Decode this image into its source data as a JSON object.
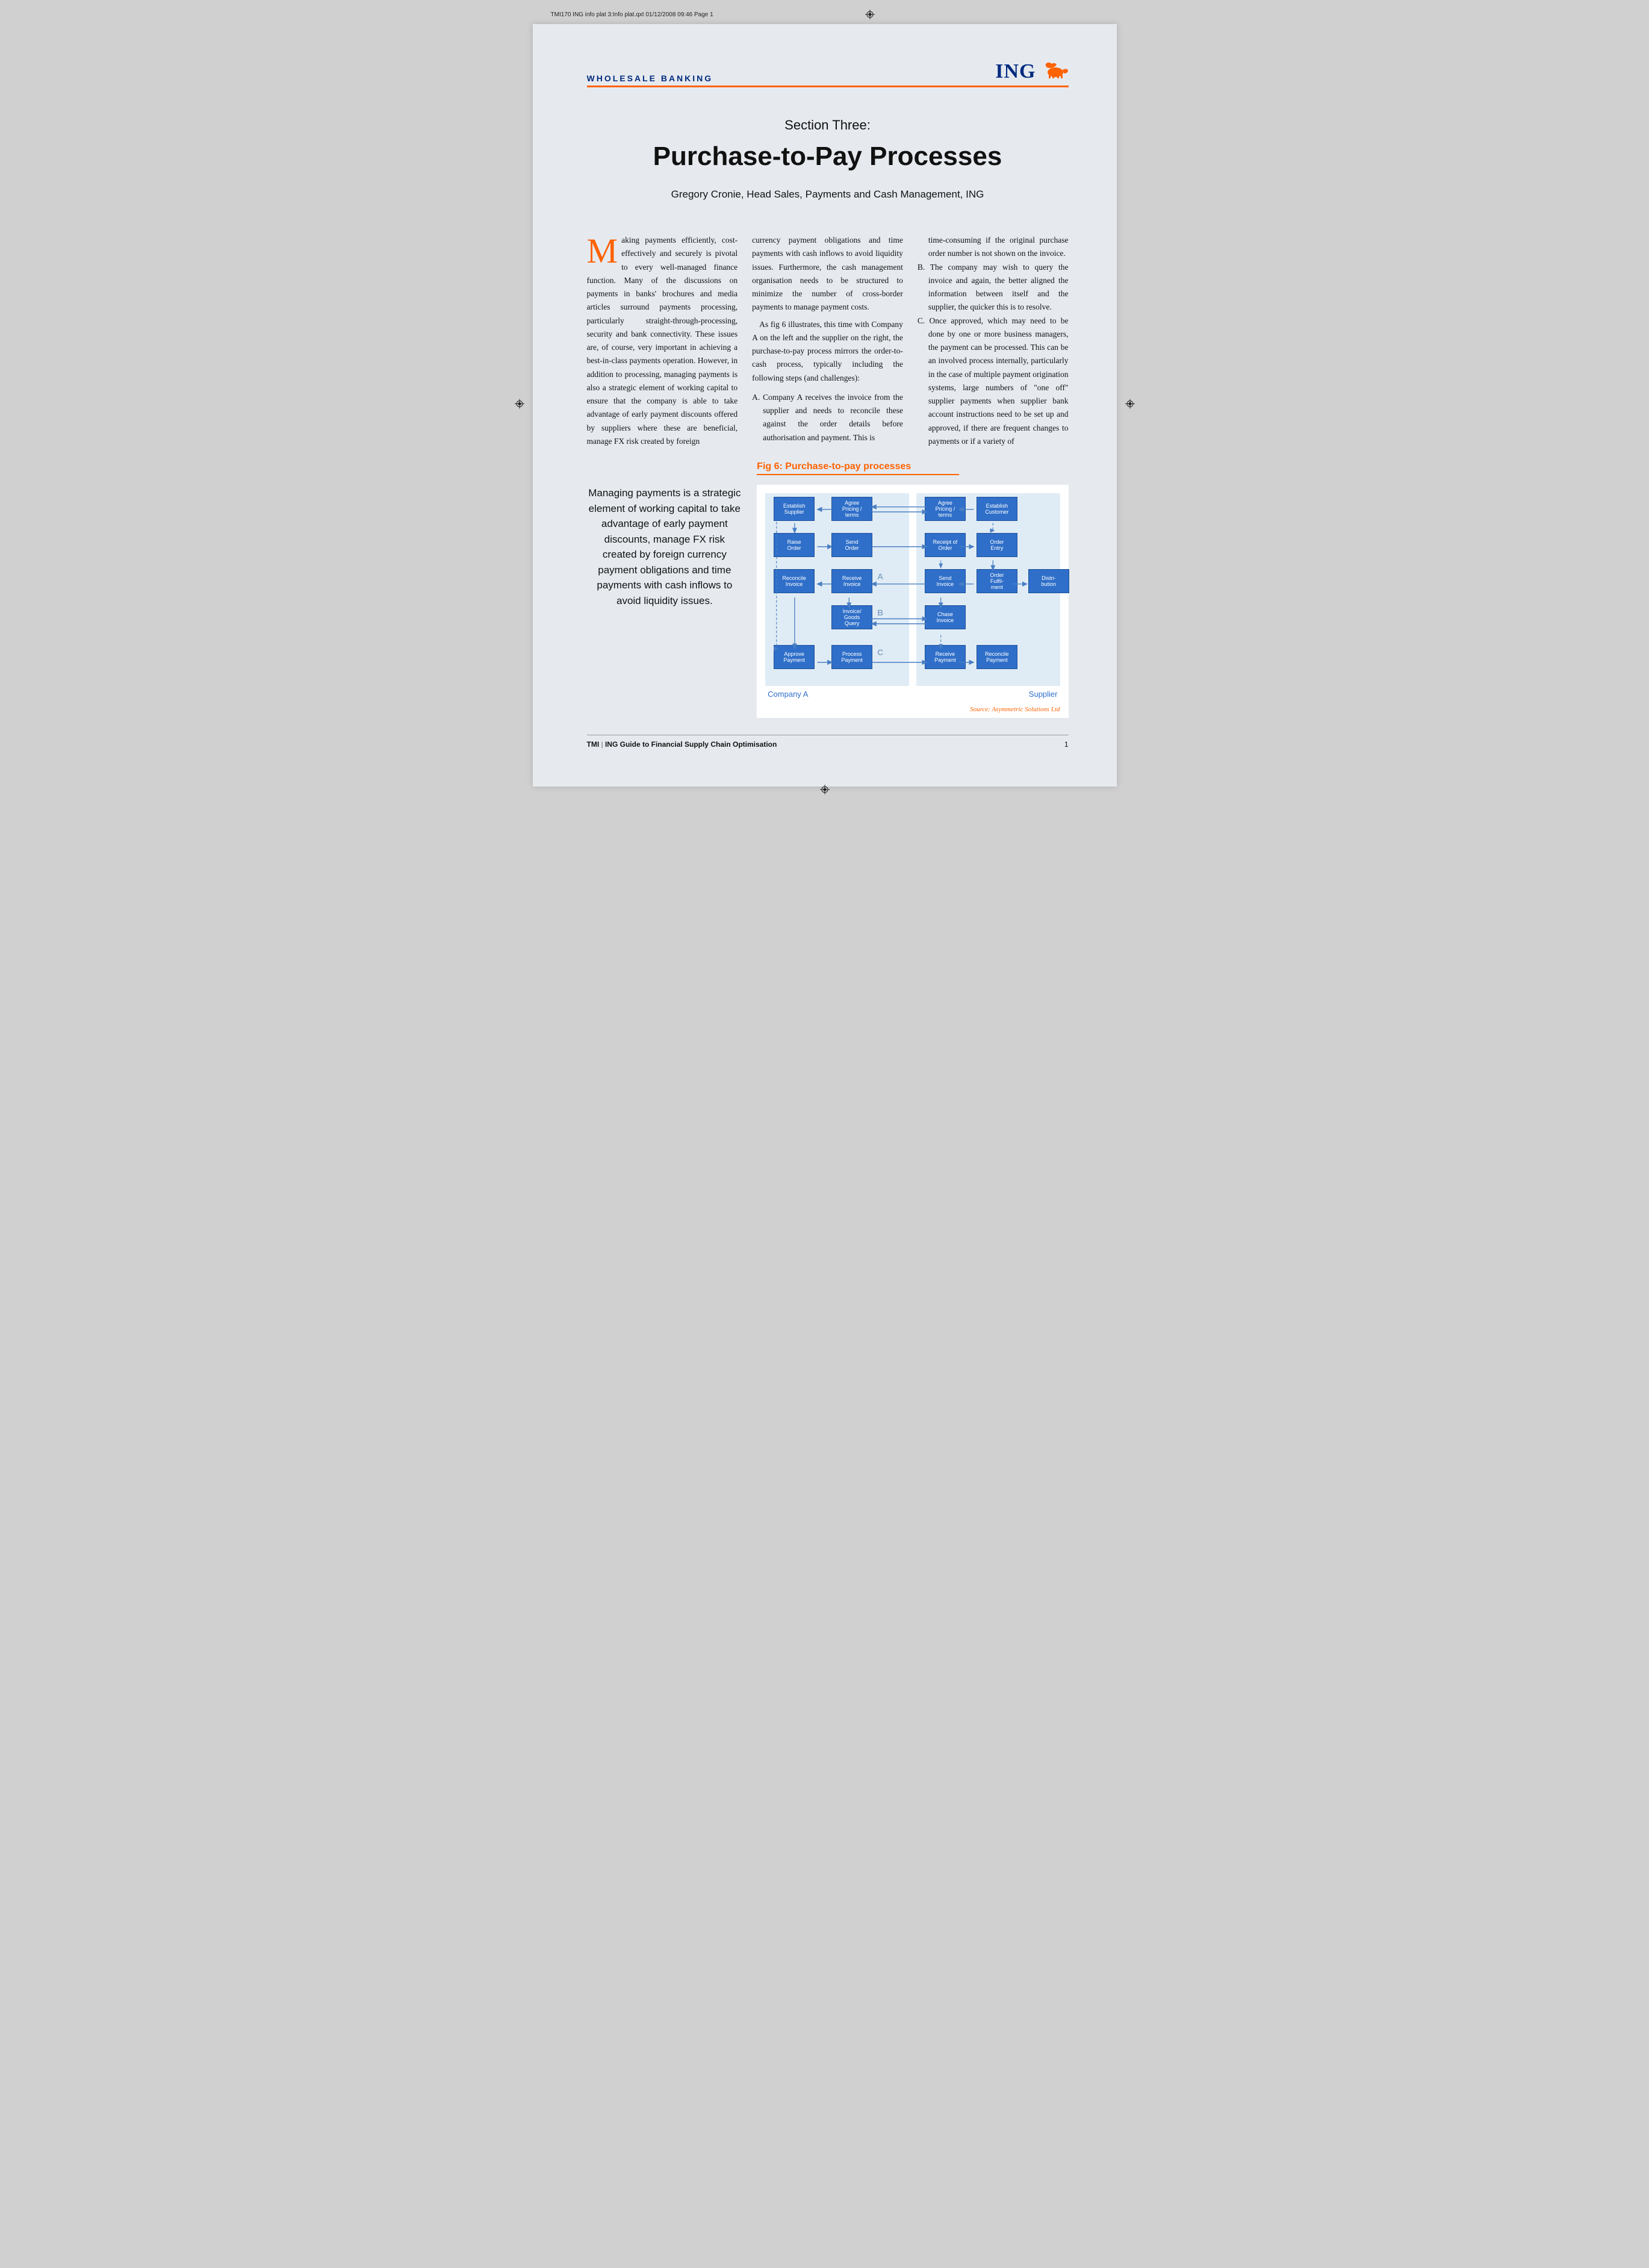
{
  "printHeader": "TMI170 ING info plat 3:Info plat.qxt  01/12/2008  09:46  Page 1",
  "sectionLabel": "WHOLESALE BANKING",
  "brand": {
    "name": "ING"
  },
  "article": {
    "pretitle": "Section Three:",
    "title": "Purchase-to-Pay Processes",
    "byline": "Gregory Cronie, Head Sales, Payments and Cash Management, ING",
    "dropcap": "M",
    "col1a": "aking payments efficiently, cost-effectively and securely is pivotal to every well-managed finance function. Many of the discussions on payments in banks' brochures and media articles surround payments processing, particularly straight-through-processing, security and bank connectivity. These issues are, of course, very important in achieving a best-in-class payments operation. However, in addition to processing, managing payments is also a strategic element of working capital to ensure that the company is able to take advantage of early payment discounts offered by suppliers where these are beneficial, manage FX risk created by foreign",
    "col2a": "currency payment obligations and time payments with cash inflows to avoid liquidity issues. Furthermore, the cash management organisation needs to be structured to minimize the number of cross-border payments to manage payment costs.",
    "col2b": "As fig 6 illustrates, this time with Company A on the left and the supplier on the right, the purchase-to-pay process mirrors the order-to-cash process, typically including the following steps (and challenges):",
    "col2c": "A. Company A receives the invoice from the supplier and needs to reconcile these against the order details before authorisation and payment. This is",
    "col3a": "time-consuming if the original purchase order number is not shown on the invoice.",
    "col3b": "B. The company may wish to query the invoice and again, the better aligned the information between itself and the supplier, the quicker this is to resolve.",
    "col3c": "C. Once approved, which may need to be done by one or more business managers, the payment can be processed. This can be an involved process internally, particularly in the case of multiple payment origination systems, large numbers of \"one off\" supplier payments when supplier bank account instructions need to be set up and approved, if there are frequent changes to payments or if a variety of"
  },
  "pullquote": "Managing payments is a strategic element of working capital to take advantage of early payment discounts, manage FX risk created by foreign currency payment obligations and time payments with cash inflows to avoid liquidity issues.",
  "figure": {
    "title": "Fig 6: Purchase-to-pay processes",
    "leftLabel": "Company A",
    "rightLabel": "Supplier",
    "source": "Source: Asymmetric Solutions Ltd",
    "left": {
      "r0c0": "Establish\nSupplier",
      "r0c1": "Agree\nPricing /\nterms",
      "r1c0": "Raise\nOrder",
      "r1c1": "Send\nOrder",
      "r2c0": "Reconcile\nInvoice",
      "r2c1": "Receive\nInvoice",
      "r3c1": "Invoice/\nGoods\nQuery",
      "r4c0": "Approve\nPayment",
      "r4c1": "Process\nPayment"
    },
    "right": {
      "r0c0": "Agree\nPricing /\nterms",
      "r0c1": "Establish\nCustomer",
      "r1c0": "Receipt of\nOrder",
      "r1c1": "Order\nEntry",
      "r2c0": "Send\nInvoice",
      "r2c1": "Order\nFulfil-\nment",
      "r2c2": "Distri-\nbution",
      "r3c0": "Chase\nInvoice",
      "r4c0": "Receive\nPayment",
      "r4c1": "Reconcile\nPayment"
    },
    "markers": {
      "A": "A",
      "B": "B",
      "C": "C"
    },
    "colors": {
      "nodeFill": "#2f6fc9",
      "nodeBorder": "#1d4f99",
      "arrow": "#4a7fc4",
      "arrowDash": "#4a7fc4",
      "panelBg": "#e0ecf5",
      "canvasBg": "#ffffff",
      "accent": "#ff6200",
      "navy": "#002b7f"
    }
  },
  "footer": {
    "leftBold": "TMI",
    "leftSep": "  |  ",
    "leftRest": "ING Guide to Financial Supply Chain Optimisation",
    "pageNum": "1"
  }
}
